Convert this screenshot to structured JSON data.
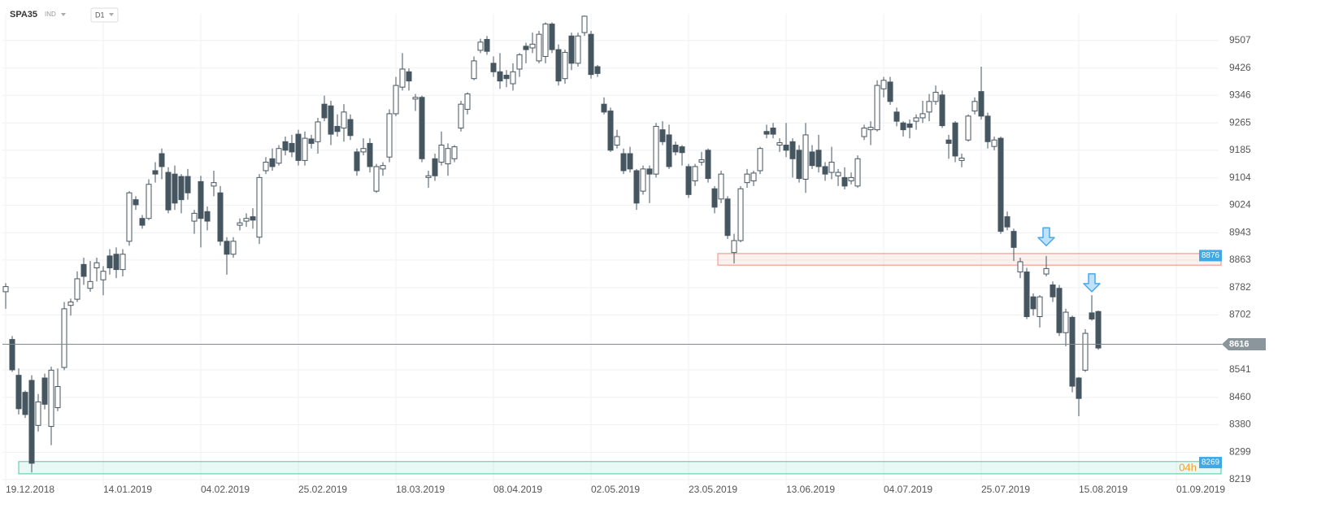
{
  "chart_data": {
    "type": "candlestick",
    "symbol": "SPA35",
    "instrument_type": "IND",
    "timeframe": "D1",
    "up_color": "#ffffff",
    "down_color": "#465661",
    "grid": true,
    "open": [
      8770,
      8630,
      8525,
      8475,
      8510,
      8378,
      8517,
      8375,
      8430,
      8548,
      8730,
      8748,
      8850,
      8780,
      8840,
      8805,
      8875,
      8880,
      8835,
      8918,
      9040,
      8985,
      8985,
      9125,
      9175,
      9120,
      9115,
      9108,
      9108,
      8977,
      9093,
      9005,
      9080,
      9060,
      8918,
      8880,
      8965,
      8977,
      8990,
      8930,
      9125,
      9160,
      9147,
      9210,
      9205,
      9232,
      9155,
      9218,
      9210,
      9320,
      9315,
      9255,
      9250,
      9275,
      9180,
      9180,
      9205,
      9065,
      9130,
      9165,
      9292,
      9370,
      9415,
      9335,
      9340,
      9105,
      9160,
      9150,
      9145,
      9160,
      9250,
      9305,
      9395,
      9478,
      9510,
      9440,
      9415,
      9405,
      9380,
      9423,
      9490,
      9485,
      9447,
      9460,
      9555,
      9480,
      9395,
      9520,
      9440,
      9530,
      9525,
      9430,
      9320,
      9300,
      9200,
      9175,
      9175,
      9125,
      9065,
      9130,
      9115,
      9245,
      9230,
      9200,
      9195,
      9137,
      9095,
      9150,
      9185,
      9072,
      9042,
      9042,
      8885,
      8920,
      9090,
      9095,
      9125,
      9240,
      9250,
      9200,
      9200,
      9210,
      9185,
      9100,
      9180,
      9185,
      9137,
      9120,
      9110,
      9105,
      9095,
      9080,
      9225,
      9245,
      9245,
      9365,
      9385,
      9297,
      9265,
      9262,
      9270,
      9280,
      9297,
      9328,
      9347,
      9215,
      9265,
      9155,
      9215,
      9300,
      9357,
      9285,
      9196,
      9220,
      8990,
      8947,
      8828,
      8828,
      8755,
      8697,
      8822,
      8790,
      8780,
      8650,
      8695,
      8517,
      8540,
      8708,
      8712
    ],
    "high": [
      8795,
      8640,
      8545,
      8480,
      8525,
      8470,
      8530,
      8550,
      8545,
      8740,
      8750,
      8830,
      8870,
      8860,
      8870,
      8845,
      8895,
      8900,
      8895,
      9065,
      9050,
      8995,
      9100,
      9150,
      9190,
      9135,
      9140,
      9115,
      9130,
      9010,
      9110,
      9020,
      9125,
      9080,
      8930,
      8930,
      8985,
      9000,
      9015,
      9115,
      9165,
      9190,
      9200,
      9225,
      9230,
      9245,
      9240,
      9230,
      9280,
      9345,
      9330,
      9290,
      9320,
      9290,
      9190,
      9220,
      9220,
      9145,
      9150,
      9305,
      9400,
      9470,
      9425,
      9350,
      9345,
      9125,
      9175,
      9240,
      9205,
      9200,
      9330,
      9355,
      9460,
      9512,
      9520,
      9460,
      9470,
      9420,
      9440,
      9470,
      9500,
      9530,
      9535,
      9560,
      9560,
      9495,
      9480,
      9530,
      9530,
      9580,
      9535,
      9435,
      9340,
      9310,
      9245,
      9190,
      9195,
      9130,
      9140,
      9140,
      9265,
      9270,
      9260,
      9210,
      9200,
      9145,
      9145,
      9180,
      9190,
      9080,
      9125,
      9050,
      8940,
      9080,
      9130,
      9125,
      9195,
      9260,
      9265,
      9220,
      9265,
      9220,
      9200,
      9265,
      9200,
      9230,
      9150,
      9195,
      9130,
      9135,
      9120,
      9170,
      9260,
      9270,
      9390,
      9400,
      9400,
      9310,
      9270,
      9275,
      9290,
      9330,
      9350,
      9375,
      9360,
      9230,
      9270,
      9175,
      9290,
      9340,
      9430,
      9295,
      9225,
      9225,
      9005,
      8955,
      8870,
      8840,
      8765,
      8760,
      8875,
      8800,
      8790,
      8720,
      8700,
      8520,
      8660,
      8760,
      8715
    ],
    "low": [
      8720,
      8535,
      8410,
      8400,
      8240,
      8360,
      8425,
      8320,
      8420,
      8540,
      8700,
      8740,
      8790,
      8770,
      8800,
      8760,
      8820,
      8810,
      8815,
      8905,
      9010,
      8955,
      8980,
      9090,
      9100,
      9000,
      9010,
      9000,
      9040,
      8940,
      8900,
      8950,
      9050,
      8905,
      8820,
      8870,
      8950,
      8960,
      8955,
      8910,
      9115,
      9125,
      9140,
      9170,
      9165,
      9140,
      9140,
      9190,
      9175,
      9270,
      9200,
      9225,
      9210,
      9215,
      9110,
      9170,
      9120,
      9060,
      9110,
      9150,
      9285,
      9360,
      9360,
      9300,
      9150,
      9075,
      9095,
      9140,
      9110,
      9150,
      9240,
      9290,
      9390,
      9470,
      9465,
      9400,
      9365,
      9370,
      9360,
      9400,
      9440,
      9470,
      9440,
      9440,
      9470,
      9375,
      9380,
      9420,
      9430,
      9520,
      9395,
      9400,
      9290,
      9180,
      9190,
      9115,
      9120,
      9010,
      9055,
      9030,
      9105,
      9200,
      9130,
      9170,
      9140,
      9045,
      9080,
      9140,
      9090,
      9000,
      9030,
      8925,
      8853,
      8915,
      9075,
      9080,
      9115,
      9220,
      9220,
      9180,
      9165,
      9105,
      9090,
      9060,
      9130,
      9120,
      9095,
      9100,
      9080,
      9070,
      9085,
      9075,
      9215,
      9200,
      9240,
      9340,
      9318,
      9255,
      9225,
      9220,
      9245,
      9265,
      9270,
      9318,
      9250,
      9160,
      9150,
      9135,
      9210,
      9290,
      9275,
      9190,
      9185,
      8940,
      8950,
      8860,
      8810,
      8690,
      8700,
      8665,
      8815,
      8740,
      8640,
      8610,
      8475,
      8405,
      8535,
      8685,
      8600
    ],
    "close": [
      8785,
      8541,
      8427,
      8410,
      8267,
      8447,
      8440,
      8540,
      8492,
      8720,
      8740,
      8808,
      8815,
      8800,
      8855,
      8830,
      8840,
      8835,
      8880,
      9060,
      9025,
      8965,
      9085,
      9115,
      9137,
      9010,
      9030,
      9040,
      9060,
      9000,
      8985,
      8977,
      9090,
      8918,
      8880,
      8918,
      8972,
      8985,
      8980,
      9105,
      9150,
      9137,
      9190,
      9185,
      9180,
      9155,
      9220,
      9205,
      9268,
      9280,
      9232,
      9240,
      9297,
      9228,
      9125,
      9190,
      9137,
      9137,
      9140,
      9292,
      9375,
      9423,
      9388,
      9340,
      9160,
      9110,
      9110,
      9200,
      9190,
      9195,
      9320,
      9350,
      9447,
      9502,
      9475,
      9415,
      9388,
      9395,
      9415,
      9465,
      9480,
      9496,
      9525,
      9555,
      9480,
      9388,
      9472,
      9440,
      9520,
      9578,
      9407,
      9410,
      9297,
      9185,
      9225,
      9125,
      9130,
      9030,
      9130,
      9115,
      9255,
      9210,
      9137,
      9180,
      9178,
      9055,
      9137,
      9157,
      9102,
      9018,
      9115,
      8935,
      8920,
      9072,
      9115,
      9118,
      9190,
      9232,
      9232,
      9207,
      9185,
      9160,
      9102,
      9230,
      9140,
      9137,
      9115,
      9150,
      9120,
      9080,
      9105,
      9160,
      9250,
      9252,
      9375,
      9390,
      9328,
      9270,
      9245,
      9252,
      9280,
      9292,
      9328,
      9355,
      9257,
      9205,
      9168,
      9162,
      9285,
      9328,
      9285,
      9210,
      9215,
      8947,
      8960,
      8900,
      8858,
      8697,
      8720,
      8755,
      8838,
      8755,
      8650,
      8710,
      8493,
      8457,
      8648,
      8690,
      8605
    ],
    "xlim": [
      -0.5,
      186.5
    ],
    "xticks": [
      {
        "value": 0,
        "label": "19.12.2018"
      },
      {
        "value": 15,
        "label": "14.01.2019"
      },
      {
        "value": 30,
        "label": "04.02.2019"
      },
      {
        "value": 45,
        "label": "25.02.2019"
      },
      {
        "value": 60,
        "label": "18.03.2019"
      },
      {
        "value": 75,
        "label": "08.04.2019"
      },
      {
        "value": 90,
        "label": "02.05.2019"
      },
      {
        "value": 105,
        "label": "23.05.2019"
      },
      {
        "value": 120,
        "label": "13.06.2019"
      },
      {
        "value": 135,
        "label": "04.07.2019"
      },
      {
        "value": 150,
        "label": "25.07.2019"
      },
      {
        "value": 165,
        "label": "15.08.2019"
      },
      {
        "value": 180,
        "label": "01.09.2019"
      }
    ],
    "ylim": [
      8200,
      9585
    ],
    "yticks": [
      9507,
      9426,
      9346,
      9265,
      9185,
      9104,
      9024,
      8943,
      8863,
      8782,
      8702,
      8541,
      8460,
      8380,
      8299,
      8219
    ],
    "current_price": 8616,
    "zones": [
      {
        "low": 8848,
        "high": 8882,
        "x_start": 109.5,
        "level": 8876,
        "color": "#f08a7a"
      },
      {
        "low": 8236,
        "high": 8272,
        "x_start": 2,
        "level": 8269,
        "timer": "04h",
        "color": "#4cc9a4"
      }
    ],
    "arrows": [
      {
        "x": 160,
        "y": 8905,
        "color": "#4aa8ea"
      },
      {
        "x": 167,
        "y": 8770,
        "color": "#4aa8ea"
      }
    ]
  }
}
